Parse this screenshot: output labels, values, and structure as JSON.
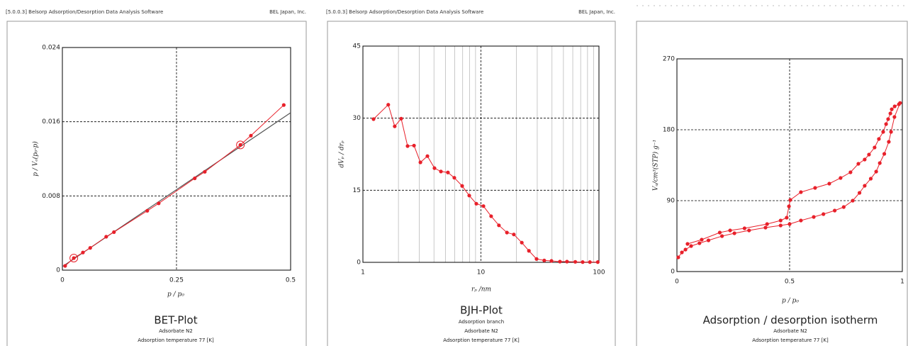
{
  "chart_data": [
    {
      "type": "scatter-line",
      "header": "[5.0.0.3] Belsorp Adsorption/Desorption Data Analysis Software",
      "company": "BEL Japan, Inc.",
      "title": "BET-Plot",
      "notes": [
        "Adsorbate N2",
        "Adsorption temperature 77 [K]"
      ],
      "xlabel": "p / p₀",
      "ylabel": "p / Vₐ(p₀-p)",
      "xlim": [
        0,
        0.5
      ],
      "xticks": [
        0,
        0.25,
        0.5
      ],
      "ylim": [
        0,
        0.024
      ],
      "yticks": [
        0,
        0.008,
        0.016,
        0.024
      ],
      "grid": "dashed",
      "log_x": false,
      "series": [
        {
          "color": "#e8202a",
          "x": [
            0.006,
            0.025,
            0.045,
            0.061,
            0.096,
            0.113,
            0.186,
            0.211,
            0.29,
            0.312,
            0.39,
            0.413,
            0.485
          ],
          "values": [
            0.00046,
            0.0013,
            0.0019,
            0.0024,
            0.0036,
            0.0041,
            0.0064,
            0.0072,
            0.0099,
            0.0106,
            0.0135,
            0.0145,
            0.0178
          ],
          "highlighted": [
            1,
            10
          ]
        }
      ],
      "fit_line": {
        "color": "#555555",
        "x": [
          0,
          0.5
        ],
        "values": [
          0.00038,
          0.01697
        ]
      }
    },
    {
      "type": "scatter-line",
      "header": "[5.0.0.3] Belsorp Adsorption/Desorption Data Analysis Software",
      "company": "BEL Japan, Inc.",
      "title": "BJH-Plot",
      "notes": [
        "Adsorption branch",
        "Adsorbate N2",
        "Adsorption temperature 77 [K]"
      ],
      "xlabel": "rₚ /nm",
      "ylabel": "dVₚ / drₚ",
      "xlim": [
        1,
        100
      ],
      "xticks": [
        1,
        10,
        100
      ],
      "ylim": [
        0,
        45
      ],
      "yticks": [
        0,
        15,
        30,
        45
      ],
      "grid": "dashed",
      "log_x": true,
      "minor_grid": true,
      "series": [
        {
          "color": "#e8202a",
          "x": [
            1.23,
            1.64,
            1.86,
            2.11,
            2.39,
            2.71,
            3.07,
            3.52,
            4.04,
            4.58,
            5.25,
            5.95,
            6.93,
            7.96,
            9.14,
            10.5,
            12.2,
            14.2,
            16.6,
            19.0,
            22.2,
            25.5,
            29.6,
            34.4,
            39.6,
            46.7,
            53.6,
            63.0,
            72.8,
            83.8,
            97.7
          ],
          "values": [
            29.8,
            32.8,
            28.3,
            29.9,
            24.2,
            24.3,
            20.8,
            22.1,
            19.6,
            18.9,
            18.7,
            17.6,
            15.9,
            13.9,
            12.2,
            11.7,
            9.6,
            7.7,
            6.2,
            5.8,
            4.1,
            2.4,
            0.7,
            0.4,
            0.3,
            0.15,
            0.15,
            0.1,
            0.05,
            0.05,
            0.05
          ]
        }
      ]
    },
    {
      "type": "scatter-line",
      "title": "Adsorption / desorption isotherm",
      "notes": [
        "Adsorbate N2",
        "Adsorption temperature 77 [K]"
      ],
      "xlabel": "p / p₀",
      "ylabel": "Vₐ/cm³(STP) g⁻¹",
      "xlim": [
        0,
        1
      ],
      "xticks": [
        0,
        0.5,
        1
      ],
      "ylim": [
        0,
        270
      ],
      "yticks": [
        0,
        90,
        180,
        270
      ],
      "grid": "dashed",
      "log_x": false,
      "series": [
        {
          "color": "#e8202a",
          "x": [
            0.006,
            0.022,
            0.038,
            0.063,
            0.1,
            0.14,
            0.2,
            0.255,
            0.32,
            0.393,
            0.46,
            0.5,
            0.55,
            0.607,
            0.65,
            0.7,
            0.74,
            0.78,
            0.81,
            0.833,
            0.86,
            0.884,
            0.9,
            0.92,
            0.94,
            0.95,
            0.965,
            0.99
          ],
          "values": [
            18,
            24.3,
            27.9,
            32.4,
            36,
            39.6,
            45,
            48.6,
            52.2,
            55.8,
            58.5,
            60.3,
            64.8,
            69.3,
            72.9,
            77.4,
            81.9,
            90,
            99.9,
            108.9,
            117.9,
            126.9,
            137.7,
            149.4,
            164.7,
            177.3,
            196.2,
            214
          ]
        },
        {
          "color": "#e8202a",
          "x": [
            0.985,
            0.966,
            0.953,
            0.947,
            0.937,
            0.928,
            0.915,
            0.896,
            0.877,
            0.852,
            0.833,
            0.805,
            0.77,
            0.726,
            0.676,
            0.613,
            0.55,
            0.503,
            0.497,
            0.487,
            0.46,
            0.4,
            0.3,
            0.236,
            0.19,
            0.11,
            0.047
          ],
          "values": [
            212.4,
            209.7,
            206,
            200.7,
            193.5,
            187.2,
            177.3,
            168.3,
            157.5,
            148.5,
            142.2,
            136.8,
            126,
            118.8,
            111.6,
            106.2,
            100.8,
            90.9,
            82.8,
            68.4,
            64.8,
            60.3,
            54.9,
            52.2,
            49.5,
            40.5,
            35.1
          ]
        }
      ]
    }
  ]
}
